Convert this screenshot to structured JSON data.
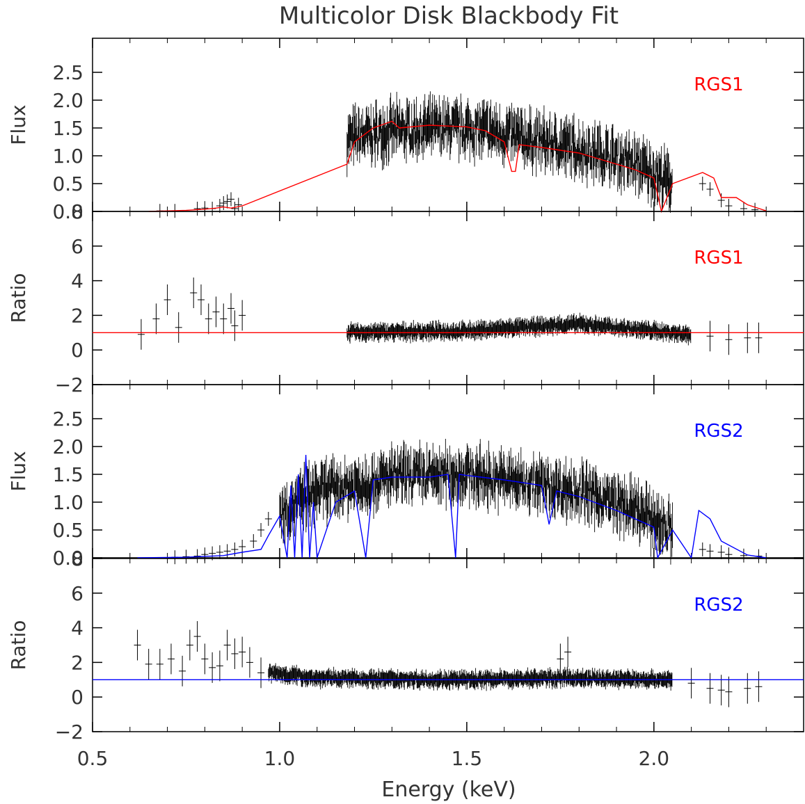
{
  "title": "Multicolor Disk Blackbody Fit",
  "x_axis": {
    "label": "Energy (keV)",
    "range": [
      0.5,
      2.4
    ],
    "ticks": [
      0.5,
      1.0,
      1.5,
      2.0
    ],
    "tick_labels": [
      "0.5",
      "1.0",
      "1.5",
      "2.0"
    ]
  },
  "colors": {
    "rgs1_model": "#ff0000",
    "rgs2_model": "#0000ff",
    "data": "#000000"
  },
  "chart_data": [
    {
      "type": "scatter",
      "panel": "rgs1-flux",
      "ylabel": "Flux",
      "tag": "RGS1",
      "tag_color": "#ff0000",
      "ylim": [
        0,
        2.5
      ],
      "ytick_labels": [
        "0.0",
        "0.5",
        "1.0",
        "1.5",
        "2.0",
        "2.5"
      ],
      "yticks": [
        0,
        0.5,
        1.0,
        1.5,
        2.0,
        2.5
      ],
      "series": [
        {
          "style": "data",
          "x": [
            0.68,
            0.72,
            0.78,
            0.8,
            0.82,
            0.84,
            0.85,
            0.86,
            0.87,
            0.88,
            0.89
          ],
          "y": [
            0.01,
            0.01,
            0.05,
            0.06,
            0.05,
            0.1,
            0.15,
            0.18,
            0.22,
            0.05,
            0.12
          ]
        },
        {
          "style": "cloud",
          "x_start": 1.18,
          "x_end": 2.05,
          "curve": [
            [
              1.18,
              1.3
            ],
            [
              1.3,
              1.45
            ],
            [
              1.45,
              1.5
            ],
            [
              1.55,
              1.45
            ],
            [
              1.7,
              1.25
            ],
            [
              1.85,
              1.05
            ],
            [
              1.95,
              0.85
            ],
            [
              2.05,
              0.5
            ]
          ],
          "spread": 0.35
        },
        {
          "style": "data",
          "x": [
            2.13,
            2.15,
            2.18,
            2.2,
            2.24,
            2.27
          ],
          "y": [
            0.5,
            0.4,
            0.2,
            0.1,
            0.05,
            0.03
          ]
        },
        {
          "style": "model",
          "x": [
            0.65,
            0.7,
            0.75,
            0.8,
            0.83,
            0.85,
            0.87,
            0.9,
            1.18,
            1.2,
            1.25,
            1.3,
            1.32,
            1.4,
            1.5,
            1.55,
            1.6,
            1.62,
            1.63,
            1.64,
            1.7,
            1.8,
            1.85,
            1.9,
            1.95,
            2.0,
            2.02,
            2.05,
            2.13,
            2.16,
            2.18,
            2.22,
            2.25,
            2.3
          ],
          "y": [
            0.0,
            0.01,
            0.02,
            0.04,
            0.06,
            0.08,
            0.06,
            0.1,
            0.85,
            1.25,
            1.5,
            1.62,
            1.5,
            1.55,
            1.52,
            1.45,
            1.25,
            0.72,
            0.72,
            1.2,
            1.15,
            1.05,
            0.95,
            0.85,
            0.75,
            0.6,
            0.0,
            0.5,
            0.7,
            0.6,
            0.25,
            0.25,
            0.12,
            0.01
          ]
        }
      ]
    },
    {
      "type": "scatter",
      "panel": "rgs1-ratio",
      "ylabel": "Ratio",
      "tag": "RGS1",
      "tag_color": "#ff0000",
      "ylim": [
        -2,
        8
      ],
      "ytick_labels": [
        "−2",
        "0",
        "2",
        "4",
        "6",
        "8"
      ],
      "yticks": [
        -2,
        0,
        2,
        4,
        6,
        8
      ],
      "series": [
        {
          "style": "data",
          "x": [
            0.63,
            0.67,
            0.7,
            0.73,
            0.77,
            0.79,
            0.81,
            0.83,
            0.85,
            0.87,
            0.88,
            0.9
          ],
          "y": [
            0.9,
            1.8,
            2.9,
            1.3,
            3.3,
            2.9,
            1.8,
            2.2,
            1.8,
            2.4,
            1.4,
            2.0
          ]
        },
        {
          "style": "cloud",
          "x_start": 1.18,
          "x_end": 2.1,
          "curve": [
            [
              1.18,
              1.0
            ],
            [
              1.5,
              1.1
            ],
            [
              1.8,
              1.5
            ],
            [
              2.0,
              1.1
            ],
            [
              2.1,
              0.9
            ]
          ],
          "spread": 0.25
        },
        {
          "style": "data",
          "x": [
            2.15,
            2.2,
            2.25,
            2.28
          ],
          "y": [
            0.8,
            0.6,
            0.7,
            0.7
          ]
        },
        {
          "style": "model",
          "x": [
            0.5,
            2.4
          ],
          "y": [
            1.0,
            1.0
          ]
        }
      ]
    },
    {
      "type": "scatter",
      "panel": "rgs2-flux",
      "ylabel": "Flux",
      "tag": "RGS2",
      "tag_color": "#0000ff",
      "ylim": [
        0,
        2.5
      ],
      "ytick_labels": [
        "0.0",
        "0.5",
        "1.0",
        "1.5",
        "2.0",
        "2.5"
      ],
      "yticks": [
        0,
        0.5,
        1.0,
        1.5,
        2.0,
        2.5
      ],
      "series": [
        {
          "style": "data",
          "x": [
            0.72,
            0.75,
            0.78,
            0.8,
            0.82,
            0.84,
            0.86,
            0.88,
            0.9,
            0.93,
            0.95,
            0.97
          ],
          "y": [
            0.01,
            0.02,
            0.03,
            0.06,
            0.08,
            0.1,
            0.12,
            0.15,
            0.2,
            0.3,
            0.5,
            0.7
          ]
        },
        {
          "style": "cloud",
          "x_start": 1.0,
          "x_end": 2.05,
          "curve": [
            [
              1.0,
              0.8
            ],
            [
              1.1,
              1.2
            ],
            [
              1.2,
              1.3
            ],
            [
              1.3,
              1.45
            ],
            [
              1.5,
              1.5
            ],
            [
              1.6,
              1.4
            ],
            [
              1.8,
              1.2
            ],
            [
              1.95,
              0.85
            ],
            [
              2.05,
              0.5
            ]
          ],
          "spread": 0.35
        },
        {
          "style": "data",
          "x": [
            2.13,
            2.15,
            2.18,
            2.2,
            2.24,
            2.28
          ],
          "y": [
            0.15,
            0.12,
            0.1,
            0.06,
            0.04,
            0.03
          ]
        },
        {
          "style": "model",
          "x": [
            0.62,
            0.75,
            0.85,
            0.9,
            0.95,
            0.97,
            1.0,
            1.02,
            1.03,
            1.04,
            1.05,
            1.06,
            1.07,
            1.08,
            1.09,
            1.1,
            1.15,
            1.2,
            1.23,
            1.25,
            1.3,
            1.4,
            1.45,
            1.47,
            1.48,
            1.5,
            1.6,
            1.7,
            1.72,
            1.74,
            1.8,
            1.9,
            1.95,
            2.0,
            2.01,
            2.05,
            2.1,
            2.12,
            2.15,
            2.18,
            2.25,
            2.3
          ],
          "y": [
            0.0,
            0.01,
            0.04,
            0.1,
            0.15,
            0.4,
            0.75,
            0.0,
            1.3,
            0.0,
            1.5,
            0.0,
            1.85,
            0.0,
            1.0,
            0.0,
            1.0,
            1.2,
            0.0,
            1.4,
            1.45,
            1.45,
            1.5,
            0.0,
            1.5,
            1.48,
            1.4,
            1.3,
            0.6,
            1.2,
            1.1,
            0.85,
            0.7,
            0.55,
            0.0,
            0.5,
            0.0,
            0.85,
            0.7,
            0.3,
            0.05,
            0.0
          ]
        }
      ]
    },
    {
      "type": "scatter",
      "panel": "rgs2-ratio",
      "ylabel": "Ratio",
      "tag": "RGS2",
      "tag_color": "#0000ff",
      "ylim": [
        -2,
        8
      ],
      "ytick_labels": [
        "−2",
        "0",
        "2",
        "4",
        "6",
        "8"
      ],
      "yticks": [
        -2,
        0,
        2,
        4,
        6,
        8
      ],
      "series": [
        {
          "style": "data",
          "x": [
            0.62,
            0.65,
            0.68,
            0.71,
            0.74,
            0.76,
            0.78,
            0.8,
            0.82,
            0.84,
            0.86,
            0.88,
            0.9,
            0.92,
            0.95
          ],
          "y": [
            3.0,
            1.9,
            1.9,
            2.2,
            1.5,
            3.0,
            3.5,
            2.2,
            1.7,
            1.8,
            3.0,
            2.5,
            2.6,
            2.0,
            1.4
          ]
        },
        {
          "style": "cloud",
          "x_start": 0.97,
          "x_end": 2.05,
          "curve": [
            [
              0.97,
              1.4
            ],
            [
              1.1,
              1.1
            ],
            [
              1.5,
              1.0
            ],
            [
              1.75,
              1.1
            ],
            [
              2.05,
              1.0
            ]
          ],
          "spread": 0.25
        },
        {
          "style": "data",
          "x": [
            1.75,
            1.77,
            2.1,
            2.15,
            2.18,
            2.2,
            2.25,
            2.28
          ],
          "y": [
            2.2,
            2.6,
            0.8,
            0.5,
            0.4,
            0.3,
            0.5,
            0.6
          ]
        },
        {
          "style": "model",
          "x": [
            0.5,
            2.4
          ],
          "y": [
            1.0,
            1.0
          ]
        }
      ]
    }
  ]
}
